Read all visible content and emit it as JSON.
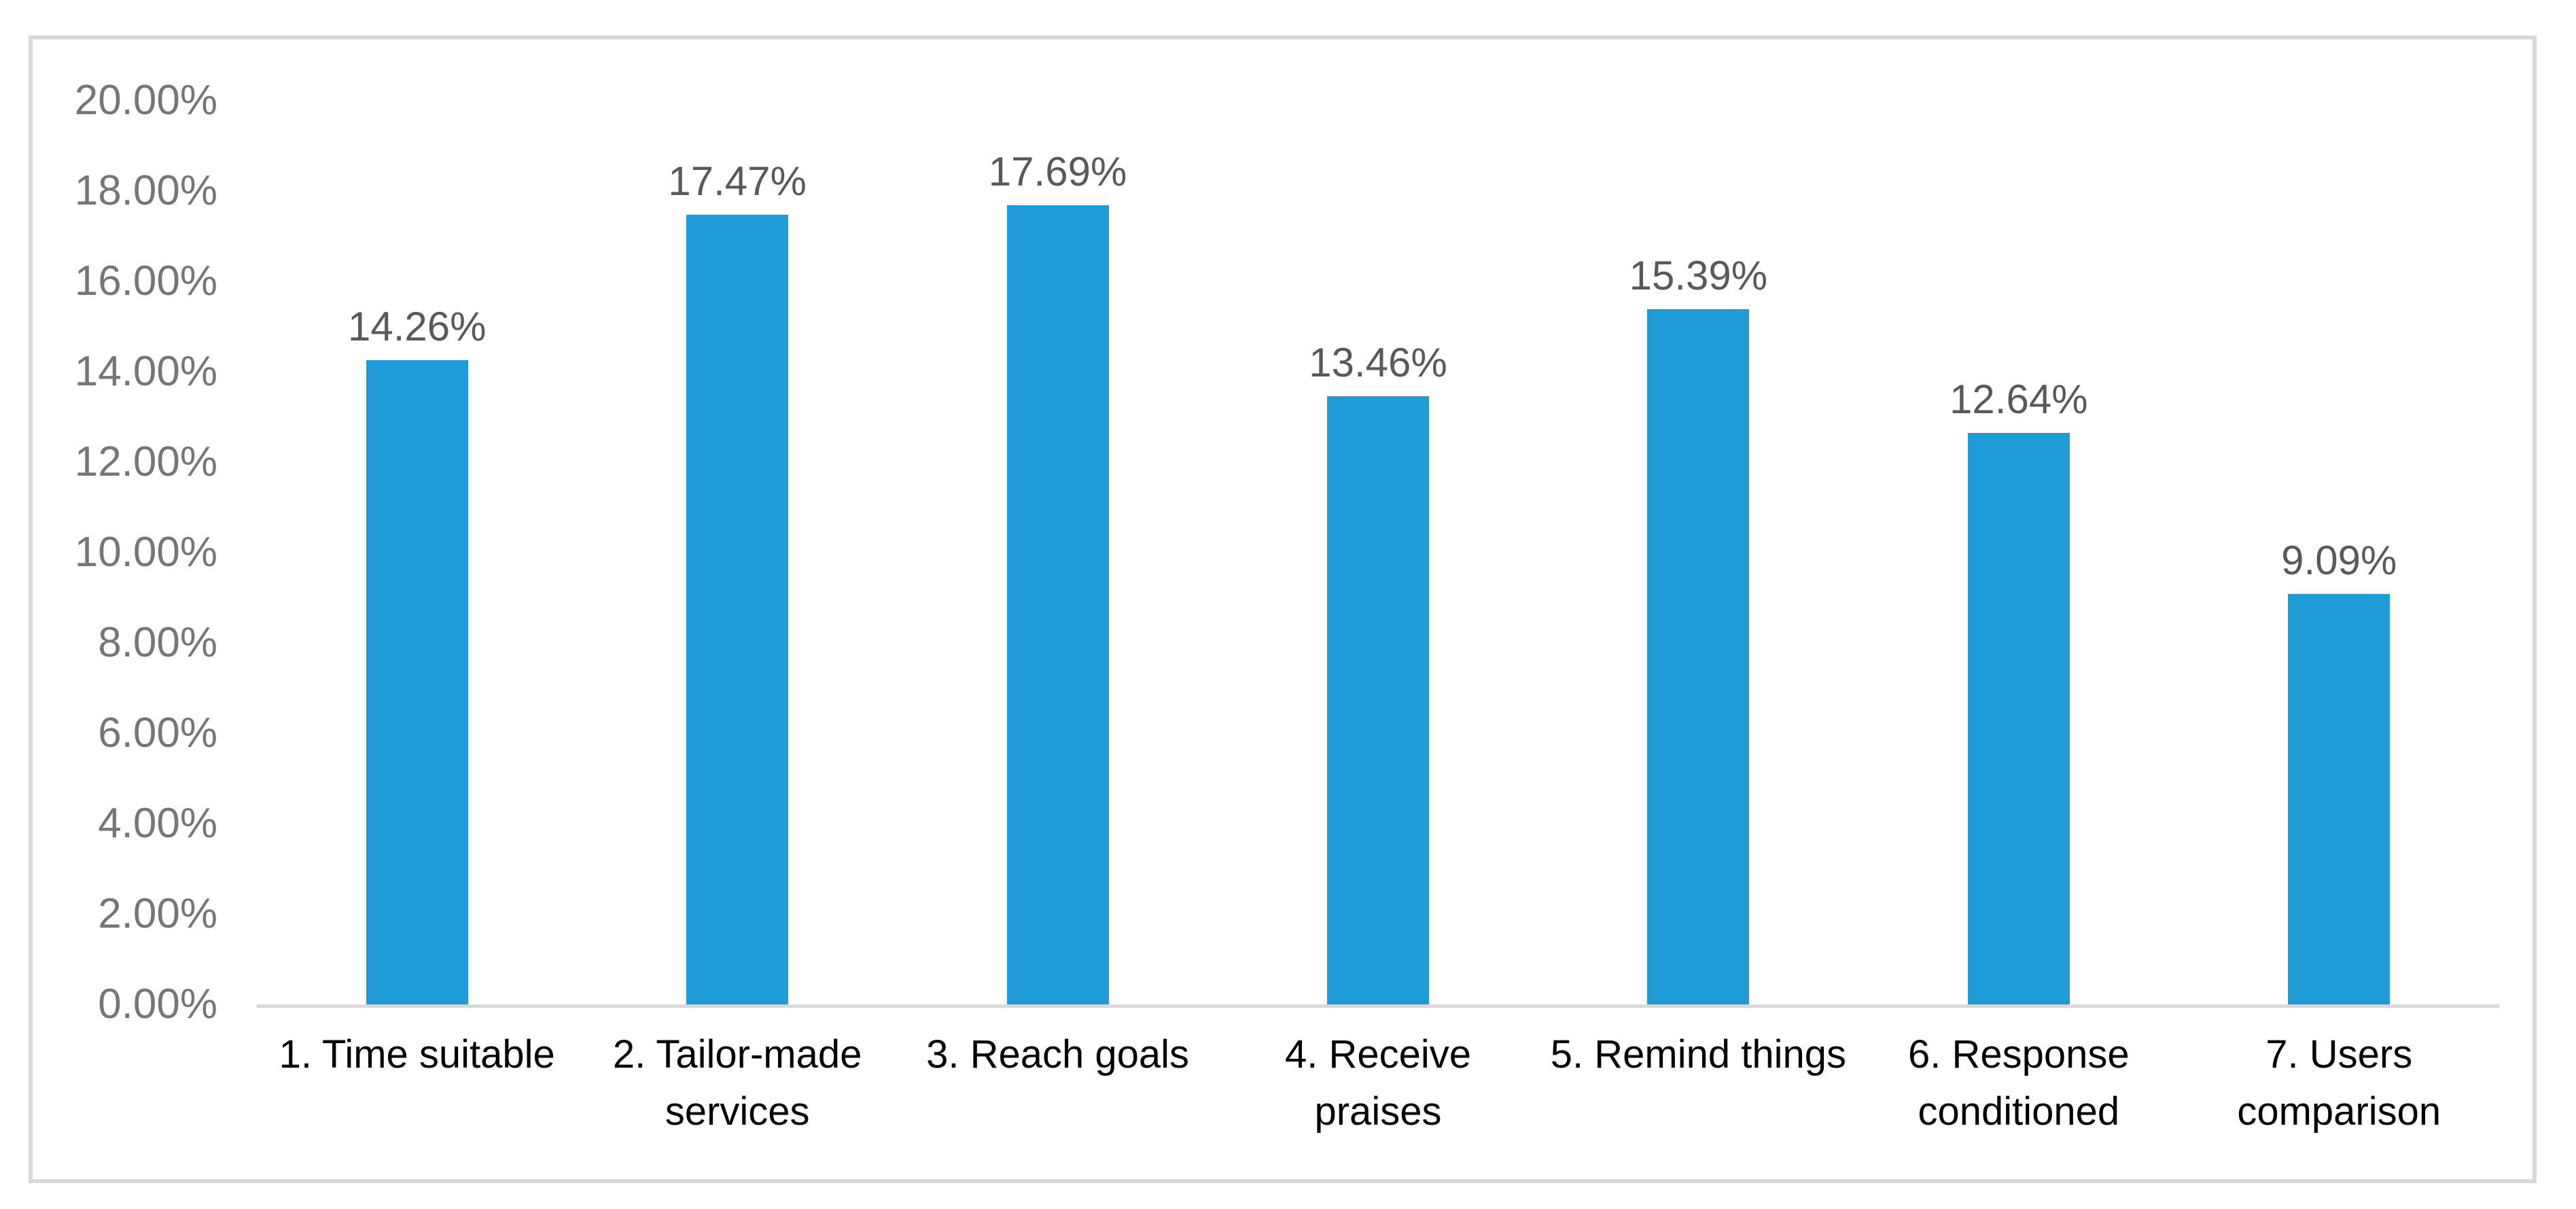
{
  "chart_data": {
    "type": "bar",
    "title": "",
    "xlabel": "",
    "ylabel": "",
    "categories": [
      "1. Time suitable",
      "2. Tailor-made\nservices",
      "3. Reach goals",
      "4. Receive\npraises",
      "5. Remind things",
      "6. Response\nconditioned",
      "7. Users\ncomparison"
    ],
    "values": [
      14.26,
      17.47,
      17.69,
      13.46,
      15.39,
      12.64,
      9.09
    ],
    "value_labels": [
      "14.26%",
      "17.47%",
      "17.69%",
      "13.46%",
      "15.39%",
      "12.64%",
      "9.09%"
    ],
    "y_ticks": [
      "20.00%",
      "18.00%",
      "16.00%",
      "14.00%",
      "12.00%",
      "10.00%",
      "8.00%",
      "6.00%",
      "4.00%",
      "2.00%",
      "0.00%"
    ],
    "ylim": [
      0,
      20
    ],
    "grid": false,
    "legend": false,
    "series_name": "",
    "colors": {
      "bar": "#1F9CD8",
      "frame_border": "#D9D9D9",
      "axis_line": "#D9D9D9",
      "y_tick_text": "#767676",
      "value_label_text": "#595959",
      "category_text": "#000000",
      "background": "#FFFFFF"
    }
  }
}
